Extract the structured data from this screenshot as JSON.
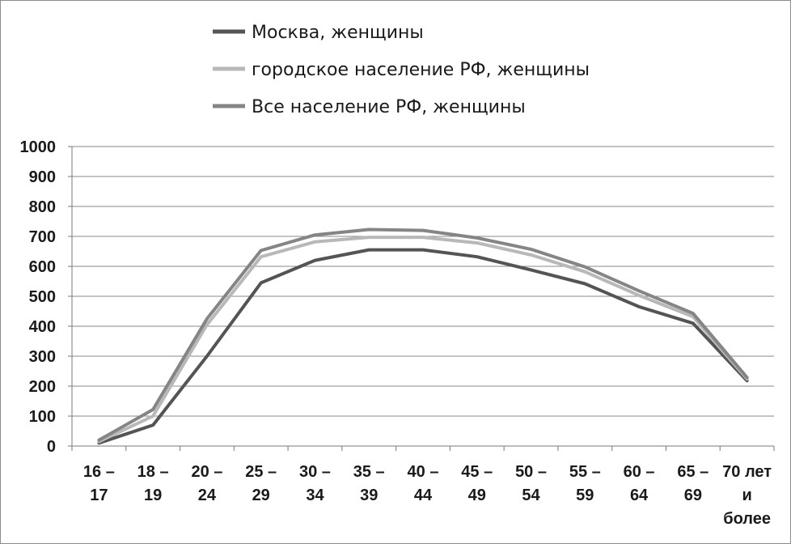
{
  "chart_data": {
    "type": "line",
    "categories": [
      [
        "16 –",
        "17"
      ],
      [
        "18 –",
        "19"
      ],
      [
        "20 –",
        "24"
      ],
      [
        "25 –",
        "29"
      ],
      [
        "30 –",
        "34"
      ],
      [
        "35 –",
        "39"
      ],
      [
        "40 –",
        "44"
      ],
      [
        "45 –",
        "49"
      ],
      [
        "50 –",
        "54"
      ],
      [
        "55 –",
        "59"
      ],
      [
        "60 –",
        "64"
      ],
      [
        "65 –",
        "69"
      ],
      [
        "70 лет",
        "и",
        "более"
      ]
    ],
    "ylim": [
      0,
      1000
    ],
    "yticks": [
      0,
      100,
      200,
      300,
      400,
      500,
      600,
      700,
      800,
      900,
      1000
    ],
    "grid": true,
    "legend_position": "top",
    "series": [
      {
        "name": "Москва, женщины",
        "color": "#545454",
        "values": [
          10,
          70,
          300,
          545,
          620,
          655,
          655,
          632,
          588,
          542,
          465,
          410,
          218
        ]
      },
      {
        "name": "городское население РФ, женщины",
        "color": "#b8b8b8",
        "values": [
          15,
          100,
          405,
          632,
          682,
          697,
          697,
          678,
          638,
          582,
          503,
          432,
          224
        ]
      },
      {
        "name": "Все население РФ, женщины",
        "color": "#858585",
        "values": [
          20,
          122,
          425,
          653,
          705,
          723,
          720,
          695,
          657,
          598,
          518,
          443,
          229
        ]
      }
    ]
  }
}
